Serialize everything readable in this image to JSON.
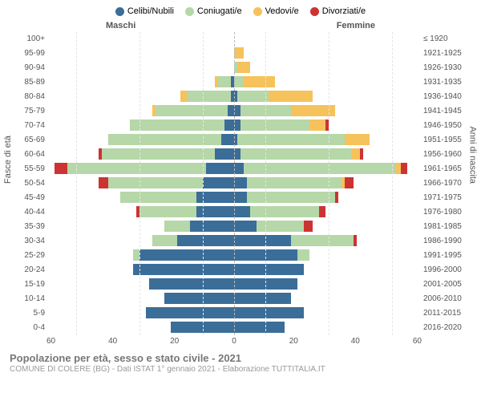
{
  "legend": [
    {
      "label": "Celibi/Nubili",
      "color": "#3b6d99"
    },
    {
      "label": "Coniugati/e",
      "color": "#b6d7a8"
    },
    {
      "label": "Vedovi/e",
      "color": "#f6c25b"
    },
    {
      "label": "Divorziati/e",
      "color": "#cc3333"
    }
  ],
  "headers": {
    "left": "Maschi",
    "right": "Femmine"
  },
  "ylabels": {
    "left": "Fasce di età",
    "right": "Anni di nascita"
  },
  "xmax": 60,
  "xticks": [
    60,
    40,
    20,
    0,
    20,
    40,
    60
  ],
  "age_groups": [
    "100+",
    "95-99",
    "90-94",
    "85-89",
    "80-84",
    "75-79",
    "70-74",
    "65-69",
    "60-64",
    "55-59",
    "50-54",
    "45-49",
    "40-44",
    "35-39",
    "30-34",
    "25-29",
    "20-24",
    "15-19",
    "10-14",
    "5-9",
    "0-4"
  ],
  "birth_years": [
    "≤ 1920",
    "1921-1925",
    "1926-1930",
    "1931-1935",
    "1936-1940",
    "1941-1945",
    "1946-1950",
    "1951-1955",
    "1956-1960",
    "1961-1965",
    "1966-1970",
    "1971-1975",
    "1976-1980",
    "1981-1985",
    "1986-1990",
    "1991-1995",
    "1996-2000",
    "2001-2005",
    "2006-2010",
    "2011-2015",
    "2016-2020"
  ],
  "rows": [
    {
      "m": {
        "cel": 0,
        "con": 0,
        "ved": 0,
        "div": 0
      },
      "f": {
        "cel": 0,
        "con": 0,
        "ved": 0,
        "div": 0
      }
    },
    {
      "m": {
        "cel": 0,
        "con": 0,
        "ved": 0,
        "div": 0
      },
      "f": {
        "cel": 0,
        "con": 0,
        "ved": 3,
        "div": 0
      }
    },
    {
      "m": {
        "cel": 0,
        "con": 0,
        "ved": 0,
        "div": 0
      },
      "f": {
        "cel": 0,
        "con": 1,
        "ved": 4,
        "div": 0
      }
    },
    {
      "m": {
        "cel": 1,
        "con": 4,
        "ved": 1,
        "div": 0
      },
      "f": {
        "cel": 0,
        "con": 3,
        "ved": 10,
        "div": 0
      }
    },
    {
      "m": {
        "cel": 1,
        "con": 14,
        "ved": 2,
        "div": 0
      },
      "f": {
        "cel": 1,
        "con": 10,
        "ved": 14,
        "div": 0
      }
    },
    {
      "m": {
        "cel": 2,
        "con": 23,
        "ved": 1,
        "div": 0
      },
      "f": {
        "cel": 2,
        "con": 16,
        "ved": 14,
        "div": 0
      }
    },
    {
      "m": {
        "cel": 3,
        "con": 30,
        "ved": 0,
        "div": 0
      },
      "f": {
        "cel": 2,
        "con": 22,
        "ved": 5,
        "div": 1
      }
    },
    {
      "m": {
        "cel": 4,
        "con": 36,
        "ved": 0,
        "div": 0
      },
      "f": {
        "cel": 1,
        "con": 34,
        "ved": 8,
        "div": 0
      }
    },
    {
      "m": {
        "cel": 6,
        "con": 36,
        "ved": 0,
        "div": 1
      },
      "f": {
        "cel": 2,
        "con": 35,
        "ved": 3,
        "div": 1
      }
    },
    {
      "m": {
        "cel": 9,
        "con": 44,
        "ved": 0,
        "div": 4
      },
      "f": {
        "cel": 3,
        "con": 48,
        "ved": 2,
        "div": 2
      }
    },
    {
      "m": {
        "cel": 10,
        "con": 30,
        "ved": 0,
        "div": 3
      },
      "f": {
        "cel": 4,
        "con": 30,
        "ved": 1,
        "div": 3
      }
    },
    {
      "m": {
        "cel": 12,
        "con": 24,
        "ved": 0,
        "div": 0
      },
      "f": {
        "cel": 4,
        "con": 28,
        "ved": 0,
        "div": 1
      }
    },
    {
      "m": {
        "cel": 12,
        "con": 18,
        "ved": 0,
        "div": 1
      },
      "f": {
        "cel": 5,
        "con": 22,
        "ved": 0,
        "div": 2
      }
    },
    {
      "m": {
        "cel": 14,
        "con": 8,
        "ved": 0,
        "div": 0
      },
      "f": {
        "cel": 7,
        "con": 15,
        "ved": 0,
        "div": 3
      }
    },
    {
      "m": {
        "cel": 18,
        "con": 8,
        "ved": 0,
        "div": 0
      },
      "f": {
        "cel": 18,
        "con": 20,
        "ved": 0,
        "div": 1
      }
    },
    {
      "m": {
        "cel": 30,
        "con": 2,
        "ved": 0,
        "div": 0
      },
      "f": {
        "cel": 20,
        "con": 4,
        "ved": 0,
        "div": 0
      }
    },
    {
      "m": {
        "cel": 32,
        "con": 0,
        "ved": 0,
        "div": 0
      },
      "f": {
        "cel": 22,
        "con": 0,
        "ved": 0,
        "div": 0
      }
    },
    {
      "m": {
        "cel": 27,
        "con": 0,
        "ved": 0,
        "div": 0
      },
      "f": {
        "cel": 20,
        "con": 0,
        "ved": 0,
        "div": 0
      }
    },
    {
      "m": {
        "cel": 22,
        "con": 0,
        "ved": 0,
        "div": 0
      },
      "f": {
        "cel": 18,
        "con": 0,
        "ved": 0,
        "div": 0
      }
    },
    {
      "m": {
        "cel": 28,
        "con": 0,
        "ved": 0,
        "div": 0
      },
      "f": {
        "cel": 22,
        "con": 0,
        "ved": 0,
        "div": 0
      }
    },
    {
      "m": {
        "cel": 20,
        "con": 0,
        "ved": 0,
        "div": 0
      },
      "f": {
        "cel": 16,
        "con": 0,
        "ved": 0,
        "div": 0
      }
    }
  ],
  "title": "Popolazione per età, sesso e stato civile - 2021",
  "subtitle": "COMUNE DI COLERE (BG) - Dati ISTAT 1° gennaio 2021 - Elaborazione TUTTITALIA.IT",
  "grid_positions_pct": [
    16.67,
    50,
    83.33
  ]
}
